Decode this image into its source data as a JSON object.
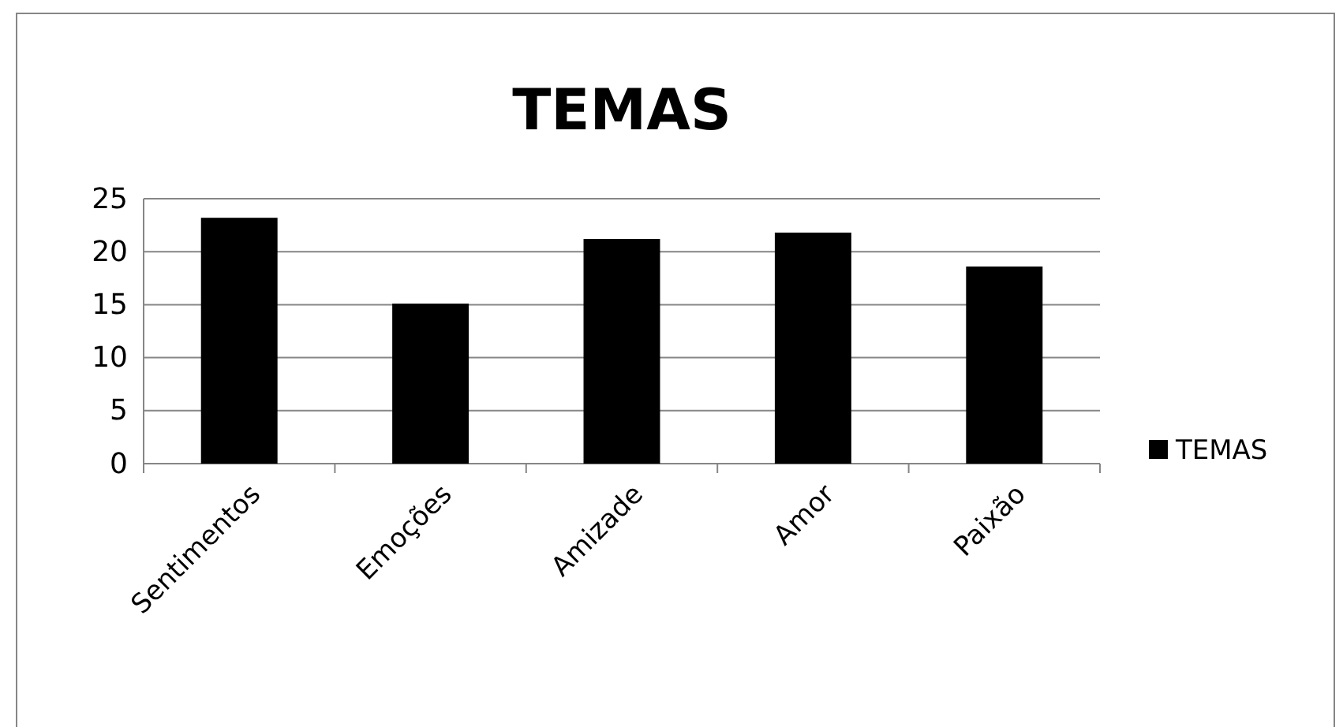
{
  "chart_data": {
    "type": "bar",
    "title": "TEMAS",
    "categories": [
      "Sentimentos",
      "Emoções",
      "Amizade",
      "Amor",
      "Paixão"
    ],
    "series": [
      {
        "name": "TEMAS",
        "color": "#000000",
        "values": [
          23.2,
          15.1,
          21.2,
          21.8,
          18.6
        ]
      }
    ],
    "ylim": [
      0,
      25
    ],
    "yticks": [
      0,
      5,
      10,
      15,
      20,
      25
    ],
    "grid": "y",
    "legend": "right"
  }
}
